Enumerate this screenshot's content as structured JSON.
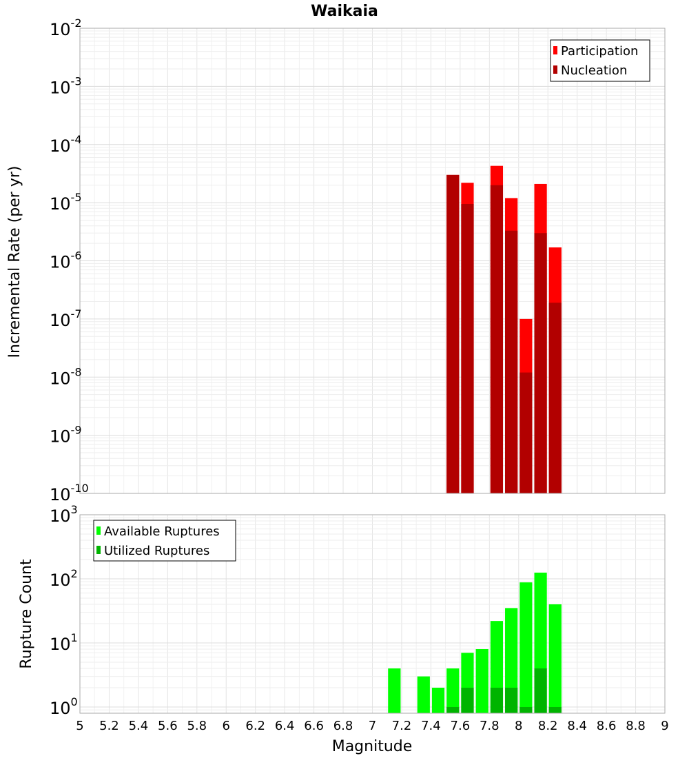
{
  "chart_data": [
    {
      "type": "bar",
      "panel": "top",
      "title": "Waikaia",
      "ylabel": "Incremental Rate (per yr)",
      "xlabel": "",
      "xlim": [
        5,
        9
      ],
      "ylim": [
        1e-10,
        0.01
      ],
      "yscale": "log",
      "grid": true,
      "legend_position": "top-right",
      "colors": {
        "participation": "#ff0000",
        "nucleation": "#b20000"
      },
      "bin_width": 0.1,
      "x": [
        7.55,
        7.65,
        7.85,
        7.95,
        8.05,
        8.15,
        8.25
      ],
      "series": [
        {
          "name": "Participation",
          "values": [
            3e-05,
            2.2e-05,
            4.3e-05,
            1.2e-05,
            1e-07,
            2.1e-05,
            1.7e-06
          ]
        },
        {
          "name": "Nucleation",
          "values": [
            3e-05,
            9.5e-06,
            2e-05,
            3.3e-06,
            1.2e-08,
            3e-06,
            1.9e-07
          ]
        }
      ],
      "y_ticks": [
        {
          "base": "10",
          "exp": "-10"
        },
        {
          "base": "10",
          "exp": "-9"
        },
        {
          "base": "10",
          "exp": "-8"
        },
        {
          "base": "10",
          "exp": "-7"
        },
        {
          "base": "10",
          "exp": "-6"
        },
        {
          "base": "10",
          "exp": "-5"
        },
        {
          "base": "10",
          "exp": "-4"
        },
        {
          "base": "10",
          "exp": "-3"
        },
        {
          "base": "10",
          "exp": "-2"
        }
      ]
    },
    {
      "type": "bar",
      "panel": "bottom",
      "ylabel": "Rupture Count",
      "xlabel": "Magnitude",
      "xlim": [
        5,
        9
      ],
      "ylim": [
        0.8,
        1000
      ],
      "yscale": "log",
      "grid": true,
      "legend_position": "top-left",
      "colors": {
        "available": "#00ff00",
        "utilized": "#00b400"
      },
      "bin_width": 0.1,
      "x": [
        7.15,
        7.35,
        7.45,
        7.55,
        7.65,
        7.75,
        7.85,
        7.95,
        8.05,
        8.15,
        8.25
      ],
      "series": [
        {
          "name": "Available Ruptures",
          "values": [
            4,
            3,
            2,
            4,
            7,
            8,
            22,
            35,
            88,
            125,
            40
          ]
        },
        {
          "name": "Utilized Ruptures",
          "values": [
            0,
            0,
            0,
            1,
            2,
            0,
            2,
            2,
            1,
            4,
            1
          ]
        }
      ],
      "y_ticks": [
        {
          "base": "10",
          "exp": "0"
        },
        {
          "base": "10",
          "exp": "1"
        },
        {
          "base": "10",
          "exp": "2"
        },
        {
          "base": "10",
          "exp": "3"
        }
      ],
      "x_ticks": [
        "5",
        "5.2",
        "5.4",
        "5.6",
        "5.8",
        "6",
        "6.2",
        "6.4",
        "6.6",
        "6.8",
        "7",
        "7.2",
        "7.4",
        "7.6",
        "7.8",
        "8",
        "8.2",
        "8.4",
        "8.6",
        "8.8",
        "9"
      ]
    }
  ]
}
